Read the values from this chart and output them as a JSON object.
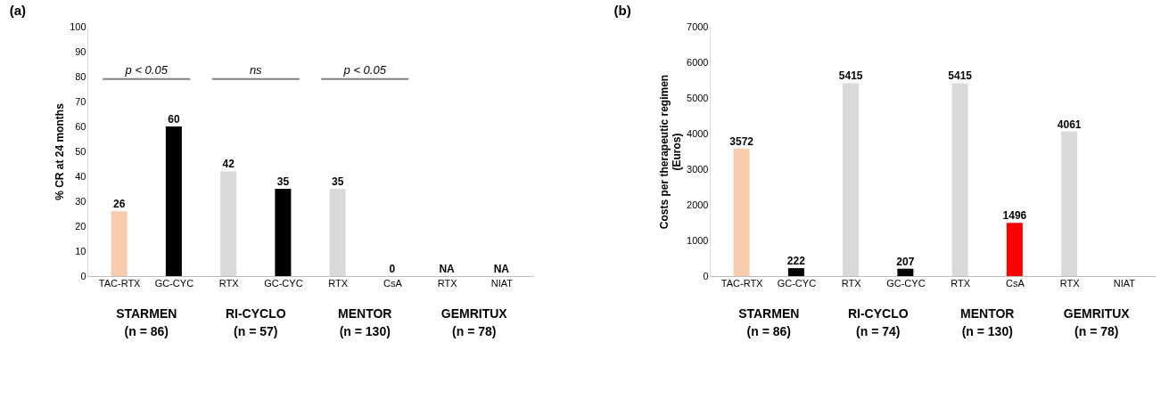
{
  "chart_data": [
    {
      "type": "bar",
      "title": "(a)",
      "ylabel": "% CR at 24 months",
      "categories": [
        "TAC-RTX",
        "GC-CYC",
        "RTX",
        "GC-CYC",
        "RTX",
        "CsA",
        "RTX",
        "NIAT"
      ],
      "values": [
        26,
        60,
        42,
        35,
        35,
        0,
        null,
        null
      ],
      "colors": [
        "#f8cbad",
        "#000000",
        "#d9d9d9",
        "#000000",
        "#d9d9d9",
        "#d9d9d9",
        "#d9d9d9",
        "#d9d9d9"
      ],
      "value_labels": [
        "26",
        "60",
        "42",
        "35",
        "35",
        "0",
        "NA",
        "NA"
      ],
      "ylim": [
        0,
        100
      ],
      "yticks": [
        0,
        10,
        20,
        30,
        40,
        50,
        60,
        70,
        80,
        90,
        100
      ],
      "grid": false,
      "annotations": [
        "p < 0.05",
        "ns",
        "p < 0.05",
        "STARMEN\n(n = 86)",
        "RI-CYCLO\n(n = 57)",
        "MENTOR\n(n = 130)",
        "GEMRITUX\n(n = 78)"
      ]
    },
    {
      "type": "bar",
      "title": "(b)",
      "ylabel": "Costs per therapeutic regimen\n(Euros)",
      "categories": [
        "TAC-RTX",
        "GC-CYC",
        "RTX",
        "GC-CYC",
        "RTX",
        "CsA",
        "RTX",
        "NIAT"
      ],
      "values": [
        3572,
        222,
        5415,
        207,
        5415,
        1496,
        4061,
        null
      ],
      "colors": [
        "#f8cbad",
        "#000000",
        "#d9d9d9",
        "#000000",
        "#d9d9d9",
        "#ff0000",
        "#d9d9d9",
        "#d9d9d9"
      ],
      "data_labels": true,
      "ylim": [
        0,
        7000
      ],
      "yticks": [
        0,
        1000,
        2000,
        3000,
        4000,
        5000,
        6000,
        7000
      ],
      "grid": false,
      "annotations": [
        "STARMEN\n(n = 86)",
        "RI-CYCLO\n(n = 74)",
        "MENTOR\n(n = 130)",
        "GEMRITUX\n(n = 78)"
      ]
    }
  ]
}
